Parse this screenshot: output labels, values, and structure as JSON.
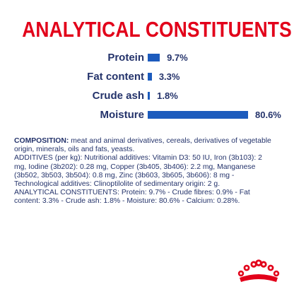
{
  "title": "ANALYTICAL CONSTITUENTS",
  "chart_data": {
    "type": "bar",
    "orientation": "horizontal",
    "categories": [
      "Protein",
      "Fat content",
      "Crude ash",
      "Moisture"
    ],
    "values": [
      9.7,
      3.3,
      1.8,
      80.6
    ],
    "value_labels": [
      "9.7%",
      "3.3%",
      "1.8%",
      "80.6%"
    ],
    "unit": "%",
    "bar_color": "#1c5bbd",
    "label_color": "#24336b"
  },
  "composition": {
    "heading": "COMPOSITION:",
    "text": " meat and animal derivatives, cereals, derivatives of vegetable origin, minerals, oils and fats, yeasts.",
    "additives": "ADDITIVES (per kg): Nutritional additives: Vitamin D3: 50 IU, Iron (3b103): 2 mg, Iodine (3b202): 0.28 mg, Copper (3b405, 3b406): 2.2 mg, Manganese (3b502, 3b503, 3b504): 0.8 mg, Zinc (3b603, 3b605, 3b606): 8 mg - Technological additives: Clinoptilolite of sedimentary origin: 2 g.",
    "constituents": "ANALYTICAL CONSTITUENTS: Protein: 9.7% - Crude fibres: 0.9% - Fat content: 3.3% - Crude ash: 1.8% - Moisture: 80.6% - Calcium: 0.28%."
  },
  "brand_color": "#e2001a"
}
